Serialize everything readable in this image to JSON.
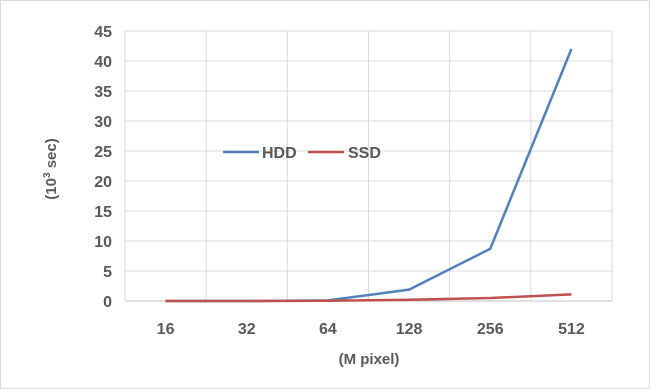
{
  "chart_data": {
    "type": "line",
    "categories": [
      "16",
      "32",
      "64",
      "128",
      "256",
      "512"
    ],
    "series": [
      {
        "name": "HDD",
        "color": "#4f81bd",
        "values": [
          0.0,
          0.0,
          0.1,
          1.9,
          8.7,
          42.0
        ]
      },
      {
        "name": "SSD",
        "color": "#c0504d",
        "values": [
          0.0,
          0.0,
          0.05,
          0.2,
          0.5,
          1.1
        ]
      }
    ],
    "xlabel": "(M pixel)",
    "ylabel_main": "(10",
    "ylabel_sup": "3",
    "ylabel_rest": " sec)",
    "ylim": [
      0,
      45
    ],
    "yticks": [
      "0",
      "5",
      "10",
      "15",
      "20",
      "25",
      "30",
      "35",
      "40",
      "45"
    ],
    "grid": true,
    "legend_position": "center-left"
  }
}
